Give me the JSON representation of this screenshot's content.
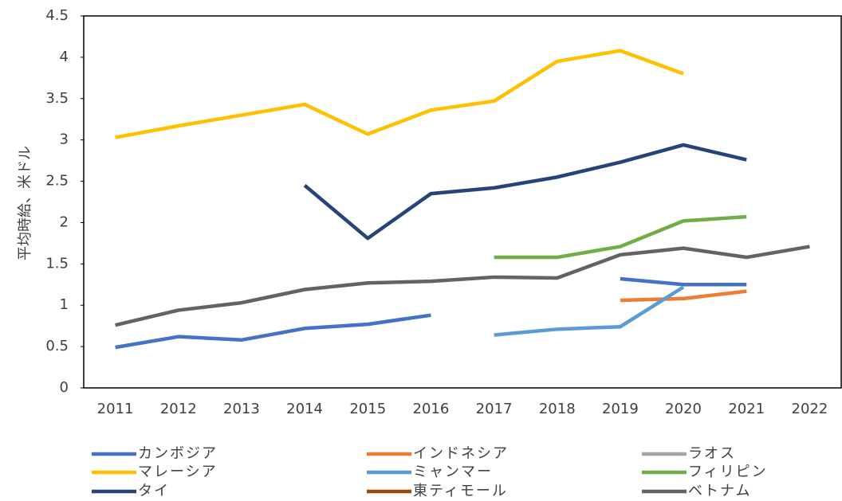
{
  "chart_data": {
    "type": "line",
    "y_label": "平均時給、米ドル",
    "categories": [
      "2011",
      "2012",
      "2013",
      "2014",
      "2015",
      "2016",
      "2017",
      "2018",
      "2019",
      "2020",
      "2021",
      "2022"
    ],
    "ylim": [
      0,
      4.5
    ],
    "yticks": [
      0,
      0.5,
      1,
      1.5,
      2,
      2.5,
      3,
      3.5,
      4,
      4.5
    ],
    "series": [
      {
        "name": "カンボジア",
        "color": "#4472c4",
        "values": [
          0.49,
          0.62,
          0.58,
          0.72,
          0.77,
          0.88,
          null,
          null,
          1.32,
          1.25,
          1.25,
          null
        ]
      },
      {
        "name": "インドネシア",
        "color": "#ed7d31",
        "values": [
          null,
          null,
          null,
          null,
          null,
          null,
          null,
          null,
          1.06,
          1.08,
          1.17,
          null
        ]
      },
      {
        "name": "ラオス",
        "color": "#a5a5a5",
        "values": [
          null,
          null,
          null,
          null,
          null,
          null,
          null,
          null,
          null,
          null,
          null,
          null
        ]
      },
      {
        "name": "マレーシア",
        "color": "#ffc000",
        "values": [
          3.03,
          3.17,
          3.3,
          3.43,
          3.07,
          3.36,
          3.47,
          3.95,
          4.08,
          3.8,
          null,
          null
        ]
      },
      {
        "name": "ミャンマー",
        "color": "#5b9bd5",
        "values": [
          null,
          null,
          null,
          null,
          null,
          null,
          0.64,
          0.71,
          0.74,
          1.22,
          null,
          null
        ]
      },
      {
        "name": "フィリピン",
        "color": "#70ad47",
        "values": [
          null,
          null,
          null,
          null,
          null,
          null,
          1.58,
          1.58,
          1.71,
          2.02,
          2.07,
          null
        ]
      },
      {
        "name": "タイ",
        "color": "#264478",
        "values": [
          null,
          null,
          null,
          2.45,
          1.81,
          2.35,
          2.42,
          2.55,
          2.73,
          2.94,
          2.76,
          null
        ]
      },
      {
        "name": "東ティモール",
        "color": "#9e480e",
        "values": [
          null,
          null,
          null,
          null,
          null,
          null,
          null,
          null,
          null,
          null,
          null,
          null
        ]
      },
      {
        "name": "ベトナム",
        "color": "#636363",
        "values": [
          0.76,
          0.94,
          1.03,
          1.19,
          1.27,
          1.29,
          1.34,
          1.33,
          1.61,
          1.69,
          1.58,
          1.71
        ]
      }
    ]
  }
}
